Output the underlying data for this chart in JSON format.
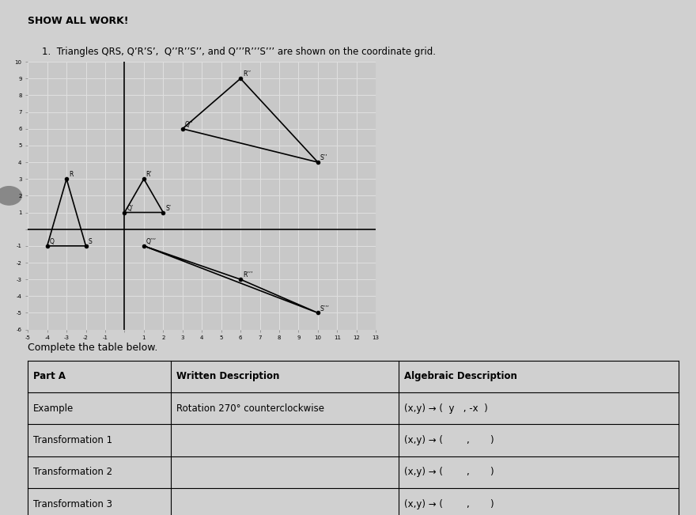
{
  "title_line1": "SHOW ALL WORK!",
  "title_line2": "1.  Triangles QRS, Q’R’S’,  Q’’R’’S’’, and Q’’’R’’’S’’’ are shown on the coordinate grid.",
  "table_intro": "Complete the table below.",
  "grid_xlim": [
    -5,
    13
  ],
  "grid_ylim": [
    -6,
    10
  ],
  "tri_QRS": {
    "Q": [
      -4,
      -1
    ],
    "R": [
      -3,
      3
    ],
    "S": [
      -2,
      -1
    ]
  },
  "tri_QRS_labels": [
    "Q",
    "R",
    "S"
  ],
  "tri_Q1R1S1": {
    "Q": [
      0,
      1
    ],
    "R": [
      1,
      3
    ],
    "S": [
      2,
      1
    ]
  },
  "tri_Q1R1S1_labels": [
    "Q’",
    "R’",
    "S’"
  ],
  "tri_Q2R2S2": {
    "Q": [
      3,
      6
    ],
    "R": [
      6,
      9
    ],
    "S": [
      10,
      4
    ]
  },
  "tri_Q2R2S2_labels": [
    "Q’’",
    "R’’",
    "S’’"
  ],
  "tri_Q3R3S3": {
    "Q": [
      1,
      -1
    ],
    "R": [
      6,
      -3
    ],
    "S": [
      10,
      -5
    ]
  },
  "tri_Q3R3S3_labels": [
    "Q’’’",
    "R’’’",
    "S’’’"
  ],
  "table_col1_header": "Part A",
  "table_col2_header": "Written Description",
  "table_col3_header": "Algebraic Description",
  "row_example": [
    "Example",
    "Rotation 270° counterclockwise",
    "(x,y) → (  y   , -x  )"
  ],
  "row_t1": [
    "Transformation 1",
    "",
    "(x,y) → (        ,       )"
  ],
  "row_t2": [
    "Transformation 2",
    "",
    "(x,y) → (        ,       )"
  ],
  "row_t3": [
    "Transformation 3",
    "",
    "(x,y) → (        ,       )"
  ],
  "bg_color": "#d0d0d0",
  "paper_color": "#f5f5f5",
  "grid_bg": "#c8c8c8",
  "grid_line_color": "#e0e0e0"
}
